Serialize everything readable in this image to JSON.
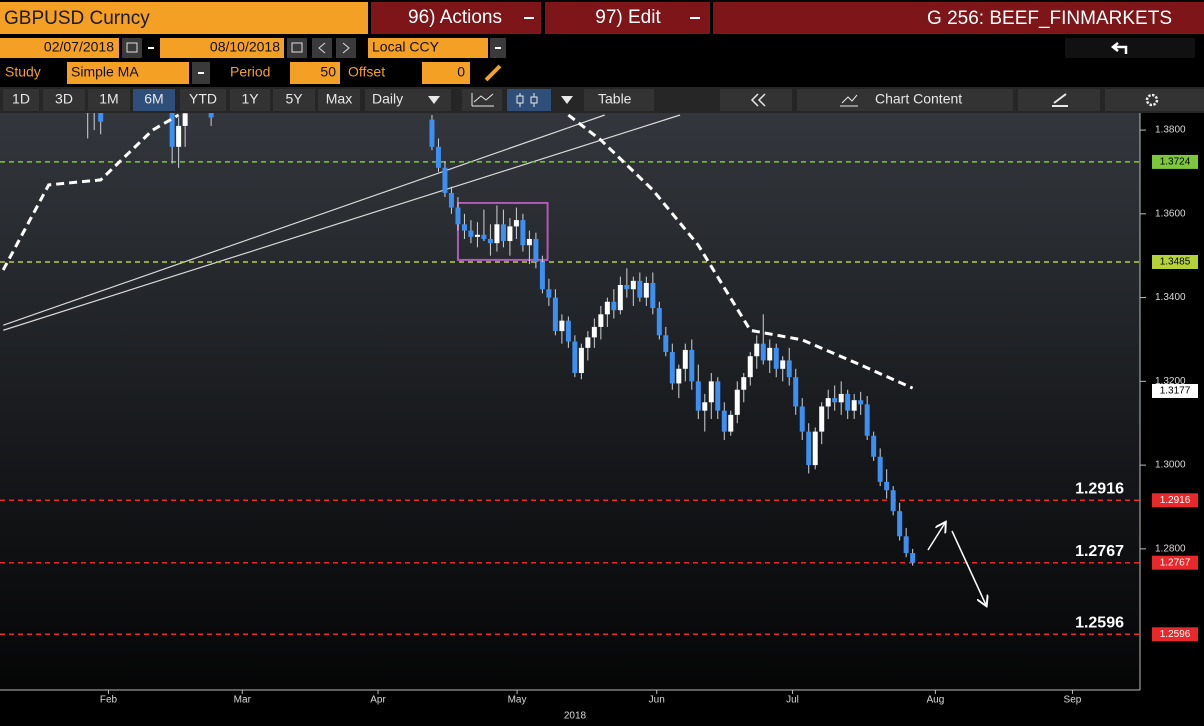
{
  "toolbar": {
    "ticker": "GBPUSD Curncy",
    "actions": "96) Actions",
    "edit": "97) Edit",
    "page": "G 256: BEEF_FINMARKETS",
    "start_date": "02/07/2018",
    "end_date": "08/10/2018",
    "currency": "Local CCY",
    "study_label": "Study",
    "study": "Simple MA",
    "period_label": "Period",
    "period": 50,
    "offset_label": "Offset",
    "offset": 0,
    "ranges": [
      "1D",
      "3D",
      "1M",
      "6M",
      "YTD",
      "1Y",
      "5Y",
      "Max"
    ],
    "frequency": "Daily",
    "table": "Table",
    "chart_content": "Chart Content"
  },
  "chart_data": {
    "type": "candlestick",
    "xlim": [
      -0.5,
      175
    ],
    "ylim": [
      1.2463,
      1.3836
    ],
    "xticks": [
      {
        "value": 16.2,
        "label": "Feb"
      },
      {
        "value": 36.8,
        "label": "Mar"
      },
      {
        "value": 57.7,
        "label": "Apr"
      },
      {
        "value": 79.1,
        "label": "May"
      },
      {
        "value": 100.6,
        "label": "Jun"
      },
      {
        "value": 121.5,
        "label": "Jul"
      },
      {
        "value": 143.5,
        "label": "Aug"
      },
      {
        "value": 164.6,
        "label": "Sep"
      }
    ],
    "xlabel": "2018",
    "yticks": [
      {
        "value": 1.38,
        "label": "1.3800"
      },
      {
        "value": 1.36,
        "label": "1.3600"
      },
      {
        "value": 1.34,
        "label": "1.3400"
      },
      {
        "value": 1.32,
        "label": "1.3200"
      },
      {
        "value": 1.3,
        "label": "1.3000"
      },
      {
        "value": 1.28,
        "label": "1.2800"
      }
    ],
    "up_color": "#ffffff",
    "down_color": "#3d8ff0",
    "x": [
      13,
      14,
      15,
      26,
      27,
      28,
      32,
      66,
      67,
      68,
      69,
      70,
      71,
      72,
      73,
      74,
      75,
      76,
      77,
      78,
      79,
      80,
      81,
      82,
      83,
      84,
      85,
      86,
      87,
      88,
      89,
      90,
      91,
      92,
      93,
      94,
      95,
      96,
      97,
      98,
      99,
      100,
      101,
      102,
      103,
      104,
      105,
      106,
      107,
      108,
      109,
      110,
      111,
      112,
      113,
      114,
      115,
      116,
      117,
      118,
      119,
      120,
      121,
      122,
      123,
      124,
      125,
      126,
      127,
      128,
      129,
      130,
      131,
      132,
      133,
      134,
      135,
      136,
      137,
      138,
      139,
      140
    ],
    "open": [
      1.388,
      1.385,
      1.387,
      1.385,
      1.376,
      1.381,
      1.386,
      1.3825,
      1.376,
      1.371,
      1.365,
      1.3615,
      1.3575,
      1.356,
      1.3545,
      1.355,
      1.354,
      1.353,
      1.3575,
      1.3535,
      1.357,
      1.3585,
      1.3525,
      1.354,
      1.3485,
      1.342,
      1.34,
      1.332,
      1.3345,
      1.3295,
      1.322,
      1.328,
      1.3305,
      1.333,
      1.336,
      1.339,
      1.337,
      1.343,
      1.342,
      1.344,
      1.34,
      1.3435,
      1.3375,
      1.331,
      1.327,
      1.3195,
      1.323,
      1.3275,
      1.32,
      1.313,
      1.315,
      1.32,
      1.313,
      1.308,
      1.312,
      1.318,
      1.321,
      1.326,
      1.329,
      1.325,
      1.328,
      1.323,
      1.325,
      1.321,
      1.314,
      1.308,
      1.3,
      1.308,
      1.314,
      1.316,
      1.315,
      1.317,
      1.313,
      1.3155,
      1.3145,
      1.307,
      1.302,
      1.296,
      1.294,
      1.289,
      1.283,
      1.279
    ],
    "high": [
      1.392,
      1.39,
      1.391,
      1.39,
      1.383,
      1.387,
      1.39,
      1.3836,
      1.378,
      1.3725,
      1.3665,
      1.364,
      1.36,
      1.3585,
      1.358,
      1.361,
      1.3575,
      1.362,
      1.361,
      1.359,
      1.3615,
      1.36,
      1.356,
      1.3555,
      1.35,
      1.3445,
      1.342,
      1.336,
      1.3355,
      1.331,
      1.329,
      1.332,
      1.335,
      1.338,
      1.34,
      1.342,
      1.345,
      1.347,
      1.345,
      1.346,
      1.345,
      1.346,
      1.339,
      1.333,
      1.329,
      1.324,
      1.329,
      1.33,
      1.324,
      1.317,
      1.322,
      1.321,
      1.315,
      1.313,
      1.32,
      1.322,
      1.327,
      1.331,
      1.336,
      1.33,
      1.329,
      1.326,
      1.328,
      1.323,
      1.316,
      1.31,
      1.309,
      1.315,
      1.318,
      1.319,
      1.32,
      1.318,
      1.317,
      1.3175,
      1.3165,
      1.308,
      1.304,
      1.299,
      1.295,
      1.291,
      1.285,
      1.28
    ],
    "low": [
      1.378,
      1.38,
      1.379,
      1.372,
      1.371,
      1.376,
      1.381,
      1.3752,
      1.37,
      1.364,
      1.36,
      1.356,
      1.354,
      1.353,
      1.352,
      1.3535,
      1.35,
      1.351,
      1.352,
      1.35,
      1.354,
      1.351,
      1.348,
      1.347,
      1.341,
      1.338,
      1.331,
      1.329,
      1.328,
      1.321,
      1.3205,
      1.325,
      1.328,
      1.33,
      1.333,
      1.335,
      1.336,
      1.34,
      1.338,
      1.339,
      1.338,
      1.336,
      1.33,
      1.326,
      1.318,
      1.316,
      1.32,
      1.318,
      1.311,
      1.308,
      1.311,
      1.311,
      1.306,
      1.307,
      1.31,
      1.315,
      1.319,
      1.323,
      1.324,
      1.322,
      1.321,
      1.32,
      1.319,
      1.312,
      1.306,
      1.298,
      1.299,
      1.305,
      1.311,
      1.313,
      1.312,
      1.311,
      1.311,
      1.312,
      1.306,
      1.301,
      1.295,
      1.292,
      1.288,
      1.282,
      1.278,
      1.276
    ],
    "close": [
      1.384,
      1.387,
      1.382,
      1.376,
      1.381,
      1.384,
      1.383,
      1.376,
      1.371,
      1.365,
      1.3615,
      1.3575,
      1.356,
      1.3545,
      1.355,
      1.354,
      1.353,
      1.3575,
      1.3535,
      1.357,
      1.3585,
      1.3525,
      1.354,
      1.3485,
      1.342,
      1.34,
      1.332,
      1.3345,
      1.3295,
      1.322,
      1.328,
      1.3305,
      1.333,
      1.336,
      1.339,
      1.337,
      1.343,
      1.342,
      1.344,
      1.34,
      1.3435,
      1.3375,
      1.331,
      1.327,
      1.3195,
      1.323,
      1.3275,
      1.32,
      1.313,
      1.315,
      1.32,
      1.313,
      1.308,
      1.312,
      1.318,
      1.321,
      1.326,
      1.329,
      1.325,
      1.328,
      1.323,
      1.325,
      1.321,
      1.314,
      1.308,
      1.3,
      1.308,
      1.314,
      1.316,
      1.315,
      1.317,
      1.313,
      1.3155,
      1.3145,
      1.307,
      1.302,
      1.296,
      1.294,
      1.289,
      1.283,
      1.279,
      1.2767
    ],
    "ma": {
      "color": "#ffffff",
      "x": [
        0,
        7,
        15,
        23,
        27,
        50,
        87,
        92,
        100,
        107,
        115,
        123,
        132,
        140
      ],
      "values": [
        1.3466,
        1.3669,
        1.3681,
        1.38,
        1.3836,
        null,
        1.3836,
        1.3776,
        1.3657,
        1.3525,
        1.3322,
        1.3299,
        1.3239,
        1.3184
      ],
      "last_value": 1.3177
    },
    "trendlines": [
      {
        "color": "#d8d8d8",
        "x": [
          0,
          92.6
        ],
        "values": [
          1.3334,
          1.3836
        ]
      },
      {
        "color": "#d8d8d8",
        "x": [
          0,
          104.2
        ],
        "values": [
          1.3322,
          1.3836
        ]
      }
    ],
    "box": {
      "color": "#b05ab8",
      "x": [
        70,
        83.8
      ],
      "values": [
        1.349,
        1.3626
      ]
    },
    "levels": [
      {
        "value": 1.3724,
        "color": "#7dc73d",
        "text_color": "#000000"
      },
      {
        "value": 1.3485,
        "color": "#b5d334",
        "text_color": "#000000"
      },
      {
        "value": 1.2916,
        "color": "#e8282b",
        "text_color": "#ffffff",
        "labeled": true
      },
      {
        "value": 1.2767,
        "color": "#e8282b",
        "text_color": "#ffffff",
        "labeled": true
      },
      {
        "value": 1.2596,
        "color": "#e8282b",
        "text_color": "#ffffff",
        "labeled": true
      }
    ]
  }
}
